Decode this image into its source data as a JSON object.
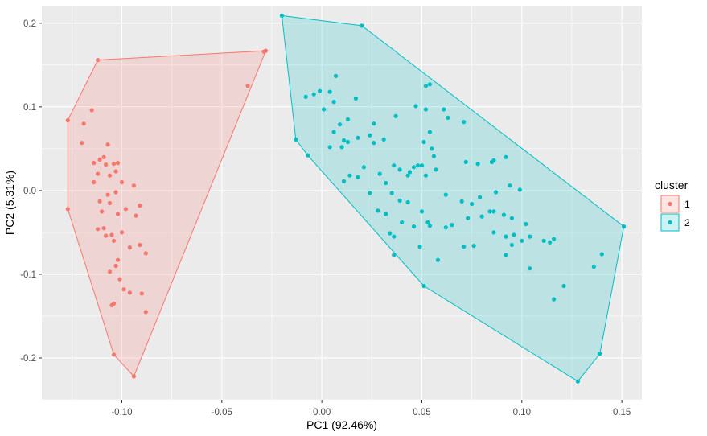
{
  "chart_data": {
    "type": "scatter",
    "title": "",
    "xlabel": "PC1 (92.46%)",
    "ylabel": "PC2 (5.31%)",
    "xlim": [
      -0.14,
      0.16
    ],
    "ylim": [
      -0.25,
      0.22
    ],
    "x_ticks": [
      -0.1,
      -0.05,
      0.0,
      0.05,
      0.1,
      0.15
    ],
    "x_tick_labels": [
      "-0.10",
      "-0.05",
      "0.00",
      "0.05",
      "0.10",
      "0.15"
    ],
    "y_ticks": [
      -0.2,
      -0.1,
      0.0,
      0.1,
      0.2
    ],
    "y_tick_labels": [
      "-0.2",
      "-0.1",
      "0.0",
      "0.1",
      "0.2"
    ],
    "grid": true,
    "panel_background": "#ebebeb",
    "legend": {
      "title": "cluster",
      "position": "right"
    },
    "series": [
      {
        "name": "1",
        "color": "#f8766d",
        "fill": "#f8766d",
        "hull": [
          [
            -0.127,
            0.084
          ],
          [
            -0.112,
            0.156
          ],
          [
            -0.028,
            0.167
          ],
          [
            -0.094,
            -0.222
          ],
          [
            -0.104,
            -0.196
          ],
          [
            -0.127,
            -0.022
          ]
        ],
        "points": [
          [
            -0.127,
            0.084
          ],
          [
            -0.127,
            -0.022
          ],
          [
            -0.112,
            0.156
          ],
          [
            -0.028,
            0.167
          ],
          [
            -0.029,
            0.166
          ],
          [
            -0.037,
            0.125
          ],
          [
            -0.115,
            0.096
          ],
          [
            -0.119,
            0.08
          ],
          [
            -0.12,
            0.057
          ],
          [
            -0.107,
            0.055
          ],
          [
            -0.109,
            0.04
          ],
          [
            -0.114,
            0.033
          ],
          [
            -0.111,
            0.037
          ],
          [
            -0.108,
            0.031
          ],
          [
            -0.104,
            0.032
          ],
          [
            -0.102,
            0.033
          ],
          [
            -0.112,
            0.02
          ],
          [
            -0.106,
            0.018
          ],
          [
            -0.103,
            0.023
          ],
          [
            -0.114,
            0.01
          ],
          [
            -0.1,
            0.01
          ],
          [
            -0.107,
            -0.005
          ],
          [
            -0.103,
            -0.002
          ],
          [
            -0.094,
            0.006
          ],
          [
            -0.111,
            -0.013
          ],
          [
            -0.106,
            -0.015
          ],
          [
            -0.098,
            -0.022
          ],
          [
            -0.091,
            -0.018
          ],
          [
            -0.11,
            -0.025
          ],
          [
            -0.102,
            -0.028
          ],
          [
            -0.093,
            -0.03
          ],
          [
            -0.109,
            -0.045
          ],
          [
            -0.105,
            -0.053
          ],
          [
            -0.1,
            -0.05
          ],
          [
            -0.112,
            -0.046
          ],
          [
            -0.108,
            -0.054
          ],
          [
            -0.104,
            -0.06
          ],
          [
            -0.096,
            -0.068
          ],
          [
            -0.091,
            -0.065
          ],
          [
            -0.088,
            -0.075
          ],
          [
            -0.102,
            -0.083
          ],
          [
            -0.103,
            -0.09
          ],
          [
            -0.106,
            -0.097
          ],
          [
            -0.101,
            -0.106
          ],
          [
            -0.099,
            -0.118
          ],
          [
            -0.096,
            -0.122
          ],
          [
            -0.09,
            -0.123
          ],
          [
            -0.104,
            -0.135
          ],
          [
            -0.088,
            -0.145
          ],
          [
            -0.105,
            -0.137
          ],
          [
            -0.104,
            -0.196
          ],
          [
            -0.094,
            -0.222
          ]
        ]
      },
      {
        "name": "2",
        "color": "#00bfc4",
        "fill": "#00bfc4",
        "hull": [
          [
            -0.02,
            0.209
          ],
          [
            0.02,
            0.197
          ],
          [
            0.151,
            -0.043
          ],
          [
            0.139,
            -0.195
          ],
          [
            0.128,
            -0.228
          ],
          [
            0.051,
            -0.114
          ],
          [
            -0.007,
            0.042
          ],
          [
            -0.013,
            0.061
          ]
        ],
        "points": [
          [
            -0.02,
            0.209
          ],
          [
            0.02,
            0.197
          ],
          [
            0.151,
            -0.043
          ],
          [
            0.139,
            -0.195
          ],
          [
            0.128,
            -0.228
          ],
          [
            0.051,
            -0.114
          ],
          [
            -0.013,
            0.061
          ],
          [
            -0.007,
            0.042
          ],
          [
            0.007,
            0.137
          ],
          [
            0.004,
            0.118
          ],
          [
            -0.001,
            0.119
          ],
          [
            -0.004,
            0.115
          ],
          [
            -0.008,
            0.112
          ],
          [
            0.001,
            0.097
          ],
          [
            0.006,
            0.106
          ],
          [
            0.017,
            0.11
          ],
          [
            0.013,
            0.085
          ],
          [
            0.026,
            0.08
          ],
          [
            0.037,
            0.089
          ],
          [
            0.052,
            0.125
          ],
          [
            0.054,
            0.127
          ],
          [
            0.047,
            0.101
          ],
          [
            0.052,
            0.097
          ],
          [
            0.061,
            0.097
          ],
          [
            0.063,
            0.087
          ],
          [
            0.071,
            0.082
          ],
          [
            0.009,
            0.079
          ],
          [
            0.006,
            0.07
          ],
          [
            0.011,
            0.06
          ],
          [
            0.013,
            0.058
          ],
          [
            0.004,
            0.052
          ],
          [
            0.01,
            0.052
          ],
          [
            0.018,
            0.063
          ],
          [
            0.024,
            0.066
          ],
          [
            0.026,
            0.057
          ],
          [
            0.031,
            0.061
          ],
          [
            0.054,
            0.07
          ],
          [
            0.051,
            0.058
          ],
          [
            0.055,
            0.05
          ],
          [
            0.056,
            0.041
          ],
          [
            0.021,
            0.028
          ],
          [
            0.036,
            0.03
          ],
          [
            0.039,
            0.025
          ],
          [
            0.029,
            0.02
          ],
          [
            0.044,
            0.022
          ],
          [
            0.046,
            0.028
          ],
          [
            0.048,
            0.03
          ],
          [
            0.05,
            0.03
          ],
          [
            0.057,
            0.025
          ],
          [
            0.014,
            0.018
          ],
          [
            0.018,
            0.016
          ],
          [
            0.032,
            0.009
          ],
          [
            0.043,
            0.018
          ],
          [
            0.052,
            0.018
          ],
          [
            0.011,
            0.011
          ],
          [
            0.072,
            0.034
          ],
          [
            0.078,
            0.032
          ],
          [
            0.086,
            0.036
          ],
          [
            0.085,
            0.034
          ],
          [
            0.092,
            0.04
          ],
          [
            0.024,
            -0.003
          ],
          [
            0.035,
            -0.003
          ],
          [
            0.039,
            -0.012
          ],
          [
            0.043,
            -0.014
          ],
          [
            0.062,
            -0.005
          ],
          [
            0.07,
            -0.013
          ],
          [
            0.075,
            -0.016
          ],
          [
            0.079,
            -0.008
          ],
          [
            0.087,
            -0.002
          ],
          [
            0.094,
            0.006
          ],
          [
            0.099,
            0.001
          ],
          [
            0.028,
            -0.024
          ],
          [
            0.032,
            -0.028
          ],
          [
            0.05,
            -0.025
          ],
          [
            0.053,
            -0.038
          ],
          [
            0.034,
            -0.051
          ],
          [
            0.036,
            -0.055
          ],
          [
            0.04,
            -0.038
          ],
          [
            0.046,
            -0.043
          ],
          [
            0.054,
            -0.042
          ],
          [
            0.065,
            -0.041
          ],
          [
            0.062,
            -0.044
          ],
          [
            0.073,
            -0.033
          ],
          [
            0.08,
            -0.031
          ],
          [
            0.084,
            -0.025
          ],
          [
            0.086,
            -0.025
          ],
          [
            0.091,
            -0.029
          ],
          [
            0.095,
            -0.033
          ],
          [
            0.102,
            -0.04
          ],
          [
            0.104,
            -0.055
          ],
          [
            0.111,
            -0.06
          ],
          [
            0.086,
            -0.05
          ],
          [
            0.092,
            -0.055
          ],
          [
            0.096,
            -0.053
          ],
          [
            0.1,
            -0.06
          ],
          [
            0.076,
            -0.066
          ],
          [
            0.071,
            -0.067
          ],
          [
            0.049,
            -0.067
          ],
          [
            0.058,
            -0.083
          ],
          [
            0.095,
            -0.065
          ],
          [
            0.092,
            -0.077
          ],
          [
            0.104,
            -0.093
          ],
          [
            0.114,
            -0.062
          ],
          [
            0.116,
            -0.058
          ],
          [
            0.136,
            -0.091
          ],
          [
            0.14,
            -0.076
          ],
          [
            0.121,
            -0.114
          ],
          [
            0.116,
            -0.13
          ],
          [
            0.036,
            -0.077
          ]
        ]
      }
    ]
  }
}
